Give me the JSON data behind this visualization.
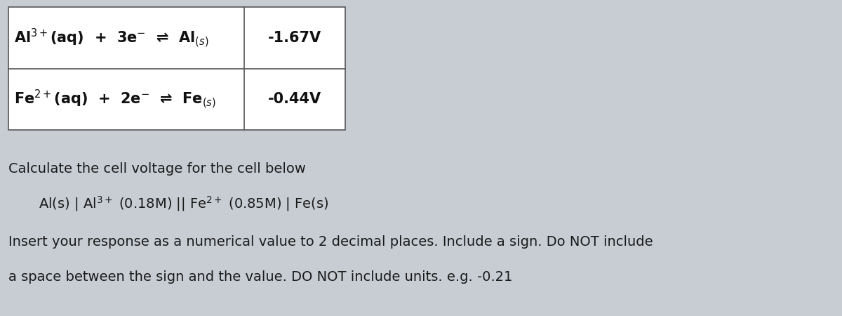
{
  "bg_color": "#c8cdd4",
  "table_border_color": "#555555",
  "row1_eq": "Al$^{3+}$(aq)  +  3e$^{-}$  ⇌  Al$_{(s)}$",
  "row1_v": "-1.67V",
  "row2_eq": "Fe$^{2+}$(aq)  +  2e$^{-}$  ⇌  Fe$_{(s)}$",
  "row2_v": "-0.44V",
  "text1": "Calculate the cell voltage for the cell below",
  "text2": "Al(s) | Al$^{3+}$ (0.18M) || Fe$^{2+}$ (0.85M) | Fe(s)",
  "text3": "Insert your response as a numerical value to 2 decimal places. Include a sign. Do NOT include",
  "text4": "a space between the sign and the value. DO NOT include units. e.g. -0.21",
  "font_color": "#1a1a1a",
  "table_text_color": "#111111",
  "font_size_table": 15,
  "font_size_main": 14,
  "font_size_cell_notation": 14
}
